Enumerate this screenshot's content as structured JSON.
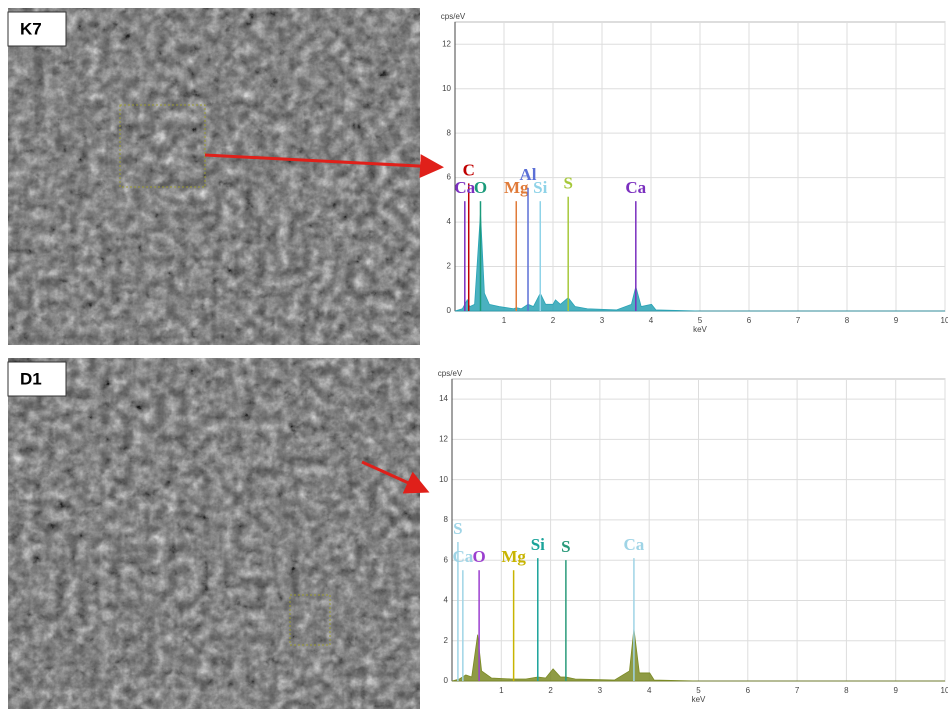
{
  "chart_data": [
    {
      "type": "area",
      "label": "K7",
      "ylabel": "cps/eV",
      "xlabel": "keV",
      "xlim": [
        0,
        10
      ],
      "xticks": [
        1,
        2,
        3,
        4,
        5,
        6,
        7,
        8,
        9,
        10
      ],
      "ylim": [
        0,
        13
      ],
      "yticks": [
        0,
        2,
        4,
        6,
        8,
        10,
        12
      ],
      "grid": true,
      "series": [
        {
          "color": "#2aa3b5",
          "x": [
            0,
            0.15,
            0.25,
            0.3,
            0.4,
            0.52,
            0.6,
            0.7,
            0.9,
            1.2,
            1.25,
            1.35,
            1.49,
            1.6,
            1.74,
            1.85,
            2.0,
            2.05,
            2.15,
            2.31,
            2.45,
            2.7,
            3.3,
            3.6,
            3.69,
            3.8,
            4.01,
            4.1,
            5,
            10
          ],
          "values": [
            0,
            0.1,
            0.5,
            0.2,
            0.3,
            4.4,
            0.8,
            0.3,
            0.2,
            0.1,
            0.15,
            0.1,
            0.3,
            0.2,
            0.8,
            0.3,
            0.3,
            0.5,
            0.3,
            0.6,
            0.2,
            0.1,
            0.05,
            0.3,
            1.1,
            0.2,
            0.3,
            0.05,
            0,
            0
          ]
        }
      ],
      "annotations": [
        {
          "text": "C",
          "x": 0.28,
          "y": 6.1,
          "color": "#c00000"
        },
        {
          "text": "Ca",
          "x": 0.2,
          "y": 5.3,
          "color": "#7b2fbf"
        },
        {
          "text": "O",
          "x": 0.52,
          "y": 5.3,
          "color": "#1a9a7a"
        },
        {
          "text": "Mg",
          "x": 1.25,
          "y": 5.3,
          "color": "#e07b39"
        },
        {
          "text": "Al",
          "x": 1.49,
          "y": 5.9,
          "color": "#5b6fd6"
        },
        {
          "text": "Si",
          "x": 1.74,
          "y": 5.3,
          "color": "#8fd3e8"
        },
        {
          "text": "S",
          "x": 2.31,
          "y": 5.5,
          "color": "#a6c83a"
        },
        {
          "text": "Ca",
          "x": 3.69,
          "y": 5.3,
          "color": "#7b2fbf"
        }
      ]
    },
    {
      "type": "area",
      "label": "D1",
      "ylabel": "cps/eV",
      "xlabel": "keV",
      "xlim": [
        0,
        10
      ],
      "xticks": [
        1,
        2,
        3,
        4,
        5,
        6,
        7,
        8,
        9,
        10
      ],
      "ylim": [
        0,
        15
      ],
      "yticks": [
        0,
        2,
        4,
        6,
        8,
        10,
        12,
        14
      ],
      "grid": true,
      "series": [
        {
          "color": "#7b8a25",
          "x": [
            0,
            0.15,
            0.28,
            0.4,
            0.52,
            0.6,
            0.8,
            1.2,
            1.5,
            1.74,
            1.9,
            2.05,
            2.2,
            2.31,
            2.5,
            3.3,
            3.6,
            3.69,
            3.8,
            4.01,
            4.1,
            5,
            10
          ],
          "values": [
            0,
            0.1,
            0.3,
            0.2,
            2.3,
            0.5,
            0.15,
            0.1,
            0.1,
            0.2,
            0.15,
            0.6,
            0.2,
            0.2,
            0.1,
            0.05,
            0.5,
            2.6,
            0.4,
            0.4,
            0.05,
            0,
            0
          ]
        }
      ],
      "annotations": [
        {
          "text": "S",
          "x": 0.12,
          "y": 7.3,
          "color": "#9fd4e6"
        },
        {
          "text": "Ca",
          "x": 0.22,
          "y": 5.9,
          "color": "#9fd4e6"
        },
        {
          "text": "O",
          "x": 0.55,
          "y": 5.9,
          "color": "#9b3fcf"
        },
        {
          "text": "Mg",
          "x": 1.25,
          "y": 5.9,
          "color": "#c8b400"
        },
        {
          "text": "Si",
          "x": 1.74,
          "y": 6.5,
          "color": "#1aa39a"
        },
        {
          "text": "S",
          "x": 2.31,
          "y": 6.4,
          "color": "#2a9a7a"
        },
        {
          "text": "Ca",
          "x": 3.69,
          "y": 6.5,
          "color": "#9fd4e6"
        }
      ]
    }
  ]
}
